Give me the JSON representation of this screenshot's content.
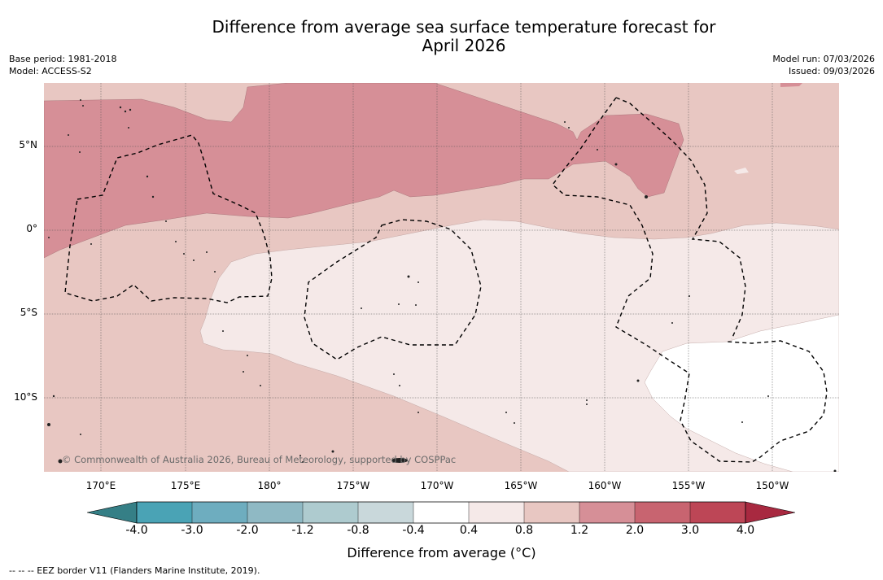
{
  "title": {
    "line1": "Difference from average sea surface temperature forecast for",
    "line2": "April 2026"
  },
  "meta": {
    "base_period": "Base period: 1981-2018",
    "model": "Model: ACCESS-S2",
    "model_run": "Model run: 07/03/2026",
    "issued": "Issued: 09/03/2026"
  },
  "map": {
    "lat_labels": [
      "5°N",
      "0°",
      "5°S",
      "10°S"
    ],
    "lon_labels": [
      "170°E",
      "175°E",
      "180°",
      "175°W",
      "170°W",
      "165°W",
      "160°W",
      "155°W",
      "150°W"
    ],
    "copyright": "© Commonwealth of Australia 2026, Bureau of Meteorology, supported by COSPPac"
  },
  "colorbar": {
    "label": "Difference from average (°C)",
    "ticks": [
      "-4.0",
      "-3.0",
      "-2.0",
      "-1.2",
      "-0.8",
      "-0.4",
      "0.4",
      "0.8",
      "1.2",
      "2.0",
      "3.0",
      "4.0"
    ],
    "colors": {
      "extend_low": "#357f86",
      "bins": [
        "#4aa3b5",
        "#6eadbf",
        "#8fb9c4",
        "#aecbcf",
        "#c9d8db",
        "#ffffff",
        "#f5e9e8",
        "#e8c7c2",
        "#d68f97",
        "#c86470",
        "#bd4656"
      ],
      "extend_high": "#a82940"
    }
  },
  "legend": {
    "eez": "--  --  -- EEZ border V11 (Flanders Marine Institute, 2019)."
  }
}
